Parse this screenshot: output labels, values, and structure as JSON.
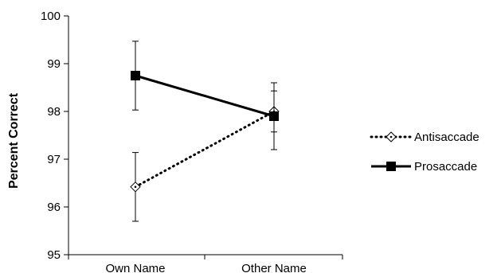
{
  "chart_data": {
    "type": "line",
    "title": "",
    "xlabel": "",
    "ylabel": "Percent Correct",
    "categories": [
      "Own Name",
      "Other Name"
    ],
    "ylim": [
      95,
      100
    ],
    "yticks": [
      "95",
      "96",
      "97",
      "98",
      "99",
      "100"
    ],
    "grid": false,
    "legend_position": "right",
    "series": [
      {
        "name": "Antisaccade",
        "values": [
          96.42,
          98.0
        ],
        "error": [
          0.72,
          0.43
        ],
        "line_style": "dotted",
        "marker": "open-diamond",
        "color": "#000000"
      },
      {
        "name": "Prosaccade",
        "values": [
          98.75,
          97.9
        ],
        "error": [
          0.72,
          0.7
        ],
        "line_style": "solid",
        "marker": "filled-square",
        "color": "#000000"
      }
    ]
  }
}
